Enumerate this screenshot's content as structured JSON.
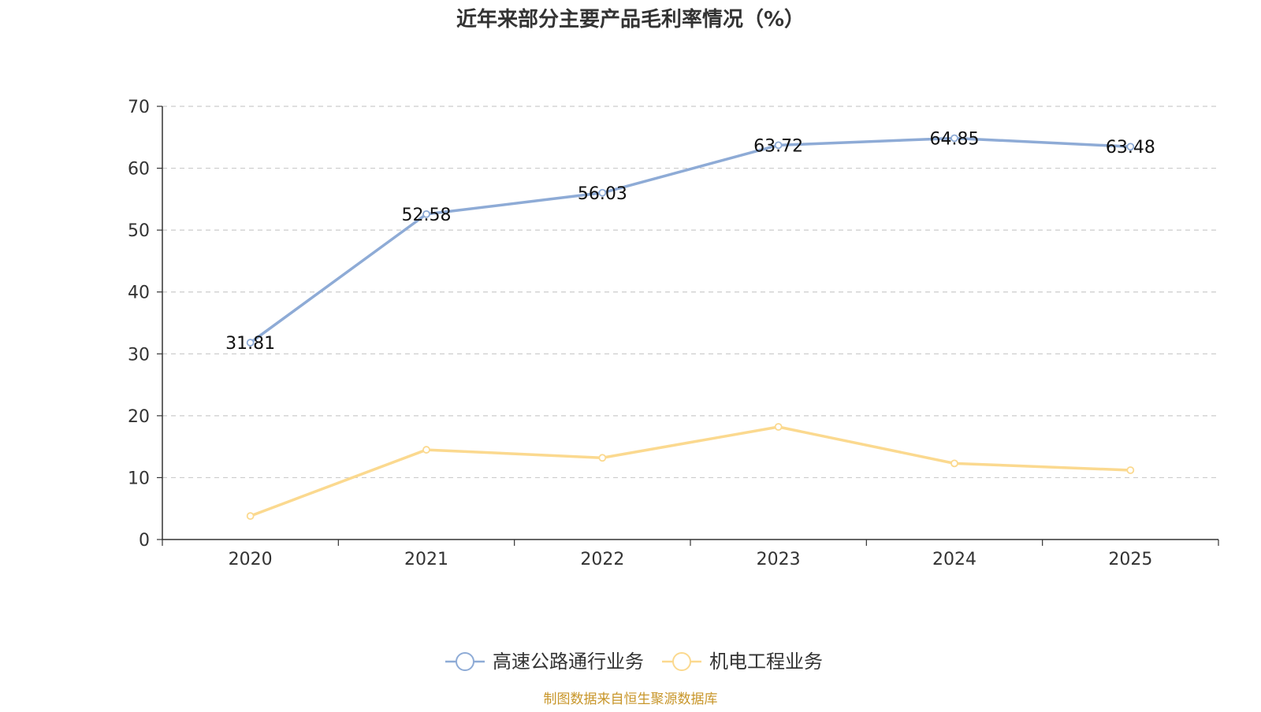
{
  "chart_data": {
    "type": "line",
    "title": "近年来部分主要产品毛利率情况（%）",
    "categories": [
      "2020",
      "2021",
      "2022",
      "2023",
      "2024",
      "2025"
    ],
    "ylim": [
      0,
      70
    ],
    "yticks": [
      0,
      10,
      20,
      30,
      40,
      50,
      60,
      70
    ],
    "grid": true,
    "legend_position": "bottom-center",
    "series": [
      {
        "name": "高速公路通行业务",
        "color": "#8eabd6",
        "values": [
          31.81,
          52.58,
          56.03,
          63.72,
          64.85,
          63.48
        ],
        "labels": [
          "31.81",
          "52.58",
          "56.03",
          "63.72",
          "64.85",
          "63.48"
        ]
      },
      {
        "name": "机电工程业务",
        "color": "#fbd98f",
        "values": [
          3.8,
          14.5,
          13.2,
          18.2,
          12.3,
          11.2
        ],
        "labels": null
      }
    ],
    "source_note": "制图数据来自恒生聚源数据库"
  }
}
